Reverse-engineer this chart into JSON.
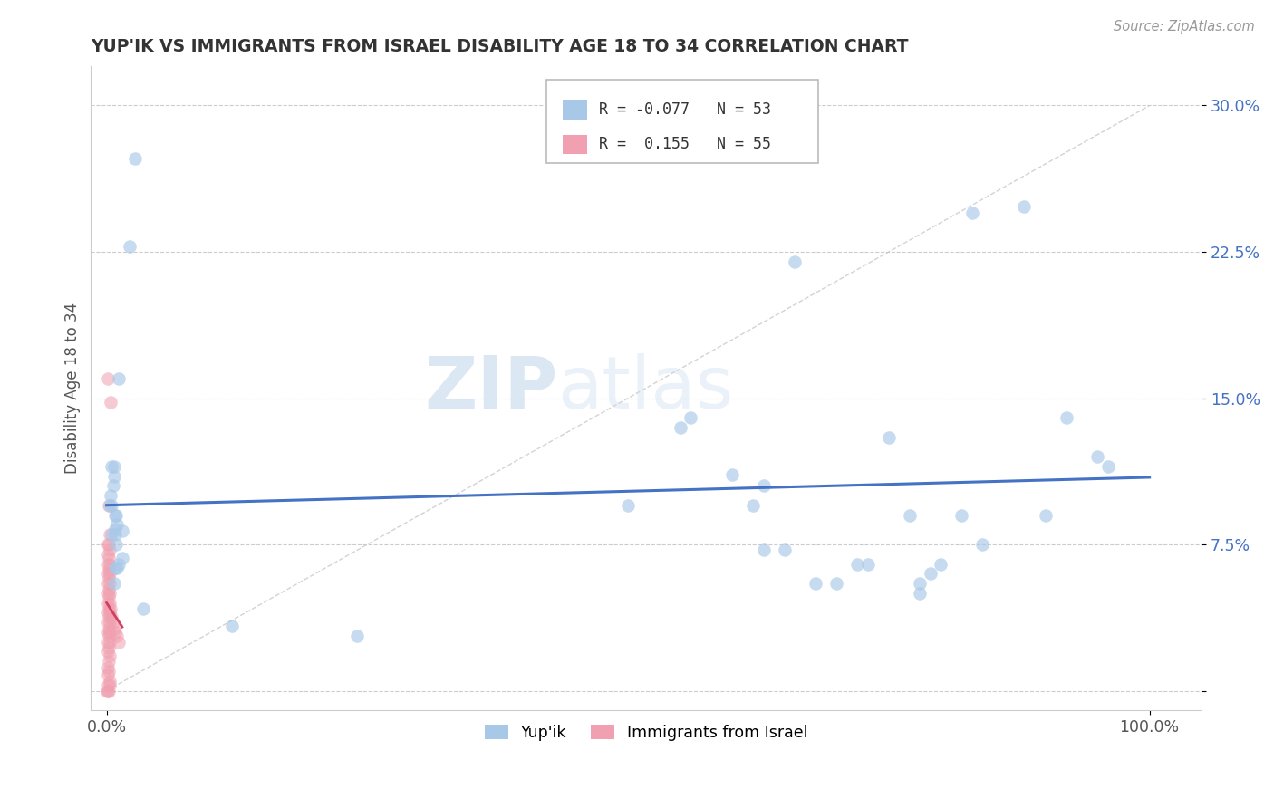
{
  "title": "YUP'IK VS IMMIGRANTS FROM ISRAEL DISABILITY AGE 18 TO 34 CORRELATION CHART",
  "source": "Source: ZipAtlas.com",
  "ylabel_label": "Disability Age 18 to 34",
  "yticks": [
    0.0,
    0.075,
    0.15,
    0.225,
    0.3
  ],
  "ytick_labels": [
    "",
    "7.5%",
    "15.0%",
    "22.5%",
    "30.0%"
  ],
  "xticks": [
    0.0,
    1.0
  ],
  "xtick_labels": [
    "0.0%",
    "100.0%"
  ],
  "xlim": [
    -0.015,
    1.05
  ],
  "ylim": [
    -0.01,
    0.32
  ],
  "legend_r1": "R = -0.077",
  "legend_n1": "N = 53",
  "legend_r2": "R =  0.155",
  "legend_n2": "N = 55",
  "color_blue": "#a8c8e8",
  "color_pink": "#f0a0b0",
  "color_blue_line": "#4472c4",
  "color_pink_line": "#d04060",
  "color_diag_line": "#c8c8c8",
  "watermark_zip": "ZIP",
  "watermark_atlas": "atlas",
  "blue_scatter": [
    [
      0.027,
      0.273
    ],
    [
      0.022,
      0.228
    ],
    [
      0.008,
      0.063
    ],
    [
      0.012,
      0.16
    ],
    [
      0.005,
      0.115
    ],
    [
      0.007,
      0.115
    ],
    [
      0.007,
      0.11
    ],
    [
      0.006,
      0.105
    ],
    [
      0.005,
      0.095
    ],
    [
      0.009,
      0.09
    ],
    [
      0.008,
      0.09
    ],
    [
      0.01,
      0.085
    ],
    [
      0.015,
      0.082
    ],
    [
      0.009,
      0.075
    ],
    [
      0.015,
      0.068
    ],
    [
      0.012,
      0.065
    ],
    [
      0.007,
      0.055
    ],
    [
      0.035,
      0.042
    ],
    [
      0.12,
      0.033
    ],
    [
      0.24,
      0.028
    ],
    [
      0.005,
      0.08
    ],
    [
      0.008,
      0.08
    ],
    [
      0.01,
      0.063
    ],
    [
      0.004,
      0.1
    ],
    [
      0.003,
      0.095
    ],
    [
      0.008,
      0.083
    ],
    [
      0.5,
      0.095
    ],
    [
      0.55,
      0.135
    ],
    [
      0.56,
      0.14
    ],
    [
      0.6,
      0.111
    ],
    [
      0.62,
      0.095
    ],
    [
      0.63,
      0.105
    ],
    [
      0.63,
      0.072
    ],
    [
      0.65,
      0.072
    ],
    [
      0.66,
      0.22
    ],
    [
      0.68,
      0.055
    ],
    [
      0.7,
      0.055
    ],
    [
      0.72,
      0.065
    ],
    [
      0.73,
      0.065
    ],
    [
      0.75,
      0.13
    ],
    [
      0.77,
      0.09
    ],
    [
      0.78,
      0.055
    ],
    [
      0.78,
      0.05
    ],
    [
      0.79,
      0.06
    ],
    [
      0.8,
      0.065
    ],
    [
      0.82,
      0.09
    ],
    [
      0.83,
      0.245
    ],
    [
      0.84,
      0.075
    ],
    [
      0.88,
      0.248
    ],
    [
      0.9,
      0.09
    ],
    [
      0.92,
      0.14
    ],
    [
      0.95,
      0.12
    ],
    [
      0.96,
      0.115
    ]
  ],
  "pink_scatter": [
    [
      0.001,
      0.16
    ],
    [
      0.004,
      0.148
    ],
    [
      0.002,
      0.095
    ],
    [
      0.003,
      0.08
    ],
    [
      0.001,
      0.075
    ],
    [
      0.002,
      0.075
    ],
    [
      0.003,
      0.072
    ],
    [
      0.001,
      0.07
    ],
    [
      0.002,
      0.068
    ],
    [
      0.001,
      0.065
    ],
    [
      0.003,
      0.065
    ],
    [
      0.002,
      0.062
    ],
    [
      0.001,
      0.06
    ],
    [
      0.003,
      0.06
    ],
    [
      0.002,
      0.058
    ],
    [
      0.001,
      0.055
    ],
    [
      0.003,
      0.055
    ],
    [
      0.002,
      0.052
    ],
    [
      0.001,
      0.05
    ],
    [
      0.003,
      0.05
    ],
    [
      0.002,
      0.048
    ],
    [
      0.001,
      0.045
    ],
    [
      0.003,
      0.045
    ],
    [
      0.002,
      0.042
    ],
    [
      0.001,
      0.04
    ],
    [
      0.003,
      0.04
    ],
    [
      0.002,
      0.038
    ],
    [
      0.001,
      0.035
    ],
    [
      0.003,
      0.035
    ],
    [
      0.002,
      0.032
    ],
    [
      0.001,
      0.03
    ],
    [
      0.003,
      0.03
    ],
    [
      0.002,
      0.028
    ],
    [
      0.001,
      0.025
    ],
    [
      0.003,
      0.025
    ],
    [
      0.002,
      0.022
    ],
    [
      0.001,
      0.02
    ],
    [
      0.003,
      0.018
    ],
    [
      0.002,
      0.015
    ],
    [
      0.001,
      0.012
    ],
    [
      0.002,
      0.01
    ],
    [
      0.001,
      0.008
    ],
    [
      0.003,
      0.005
    ],
    [
      0.001,
      0.003
    ],
    [
      0.002,
      0.0
    ],
    [
      0.001,
      0.0
    ],
    [
      0.0,
      0.0
    ],
    [
      0.004,
      0.042
    ],
    [
      0.005,
      0.038
    ],
    [
      0.006,
      0.035
    ],
    [
      0.007,
      0.032
    ],
    [
      0.008,
      0.03
    ],
    [
      0.01,
      0.028
    ],
    [
      0.012,
      0.025
    ],
    [
      0.003,
      0.003
    ]
  ],
  "blue_trend": [
    -0.077,
    0.093,
    0.083
  ],
  "pink_trend_start_x": 0.0,
  "pink_trend_end_x": 0.015,
  "pink_trend_start_y": 0.038,
  "pink_trend_end_y": 0.06
}
